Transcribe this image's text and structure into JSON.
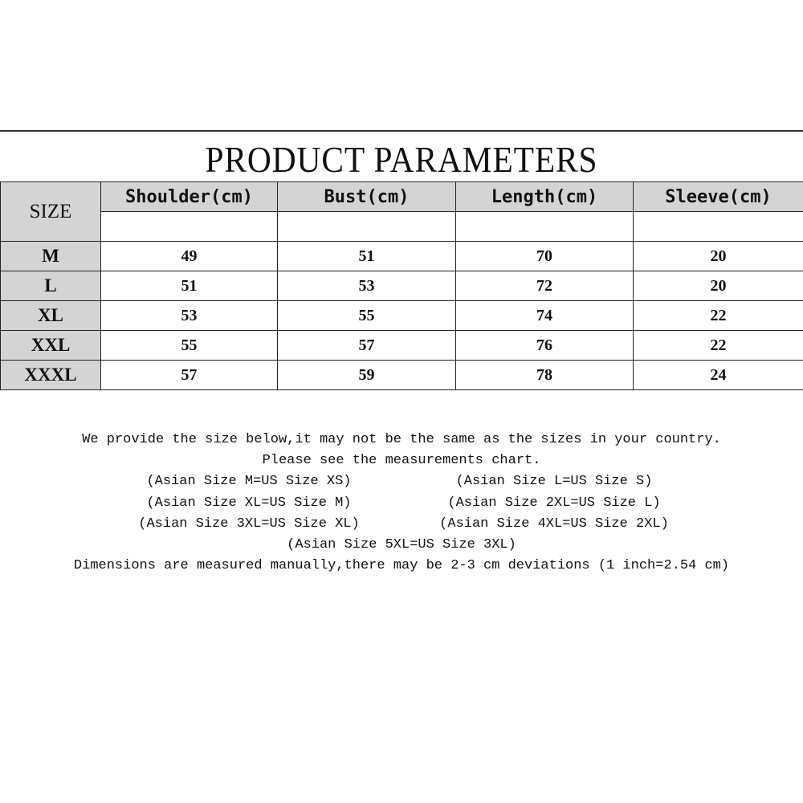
{
  "title": "PRODUCT PARAMETERS",
  "table": {
    "size_header": "SIZE",
    "columns": [
      "Shoulder(cm)",
      "Bust(cm)",
      "Length(cm)",
      "Sleeve(cm)"
    ],
    "rows": [
      {
        "size": "M",
        "values": [
          "49",
          "51",
          "70",
          "20"
        ]
      },
      {
        "size": "L",
        "values": [
          "51",
          "53",
          "72",
          "20"
        ]
      },
      {
        "size": "XL",
        "values": [
          "53",
          "55",
          "74",
          "22"
        ]
      },
      {
        "size": "XXL",
        "values": [
          "55",
          "57",
          "76",
          "22"
        ]
      },
      {
        "size": "XXXL",
        "values": [
          "57",
          "59",
          "78",
          "24"
        ]
      }
    ]
  },
  "notes": {
    "intro": "We provide the size below,it may not be the same as the sizes in your country.",
    "chart_hint": "Please see the measurements chart.",
    "conversions": [
      [
        "(Asian Size M=US Size XS)",
        "(Asian Size L=US Size S)"
      ],
      [
        "(Asian Size XL=US Size M)",
        "(Asian Size 2XL=US Size L)"
      ],
      [
        "(Asian Size 3XL=US Size XL)",
        "(Asian Size 4XL=US Size 2XL)"
      ]
    ],
    "last_conversion": "(Asian Size 5XL=US Size 3XL)",
    "disclaimer": "Dimensions are measured manually,there may be 2-3 cm deviations (1 inch=2.54 cm)"
  },
  "colors": {
    "header_bg": "#d4d4d4",
    "border": "#222222"
  }
}
